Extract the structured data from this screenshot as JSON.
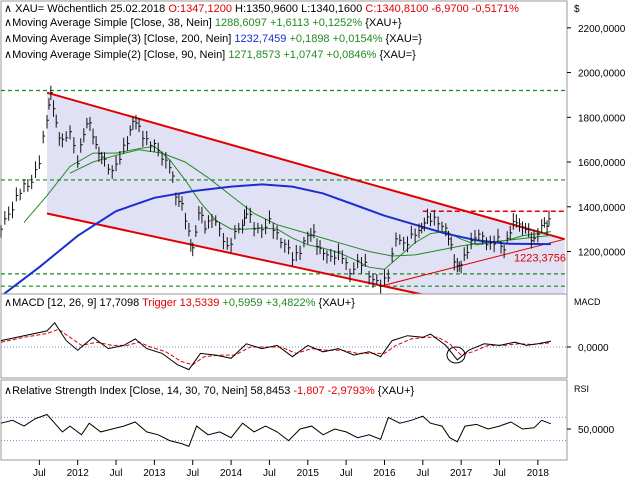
{
  "chart_data": [
    {
      "type": "line",
      "panel": "price",
      "instrument": "XAU",
      "interval": "Wöchentlich",
      "date": "25.02.2018",
      "ohlc": {
        "open_label": "O:1347,1200",
        "high_label": "H:1350,9600",
        "low_label": "L:1340,1600",
        "close_label": "C:1340,8100",
        "change_label": "-6,9700",
        "change_pct_label": "-0,5171%"
      },
      "legend": [
        {
          "prefix": "Moving Average Simple [Close, 38, Nein]",
          "value": "1288,6097",
          "change": "+1,6113",
          "pct": "+0,1252%",
          "suffix": "{XAU+}",
          "color": "#228b22"
        },
        {
          "prefix": "Moving Average Simple(3) [Close, 200, Nein]",
          "value": "1232,7459",
          "change": "+0,1898",
          "pct": "+0,0154%",
          "suffix": "{XAU=}",
          "color": "#1a2fd0"
        },
        {
          "prefix": "Moving Average Simple(2) [Close, 90, Nein]",
          "value": "1271,8573",
          "change": "+1,0747",
          "pct": "+0,0846%",
          "suffix": "{XAU=}",
          "color": "#228b22"
        }
      ],
      "currency_symbol": "$",
      "y_ticks": [
        1200,
        1400,
        1600,
        1800,
        2000,
        2200
      ],
      "y_tick_labels": [
        "1200,0000",
        "1400,0000",
        "1600,0000",
        "1800,0000",
        "2000,0000",
        "2200,0000"
      ],
      "ylim": [
        1010,
        2320
      ],
      "x_ticks": [
        "Jul",
        "2012",
        "Jul",
        "2013",
        "Jul",
        "2014",
        "Jul",
        "2015",
        "Jul",
        "2016",
        "Jul",
        "2017",
        "Jul",
        "2018"
      ],
      "x_tick_t": [
        2011.5,
        2012.0,
        2012.5,
        2013.0,
        2013.5,
        2014.0,
        2014.5,
        2015.0,
        2015.5,
        2016.0,
        2016.5,
        2017.0,
        2017.5,
        2018.0
      ],
      "xlim": [
        2011.0,
        2018.38
      ],
      "annotation_value": "1223,3756",
      "horizontal_levels": [
        1920,
        1520,
        1380,
        1100,
        1045
      ],
      "channel": {
        "upper": [
          [
            2011.6,
            1910
          ],
          [
            2018.35,
            1255
          ]
        ],
        "lower": [
          [
            2011.6,
            1370
          ],
          [
            2016.6,
            1000
          ]
        ],
        "support": [
          [
            2015.95,
            1045
          ],
          [
            2018.35,
            1255
          ]
        ]
      },
      "close": [
        [
          2011.0,
          1290
        ],
        [
          2011.1,
          1360
        ],
        [
          2011.2,
          1430
        ],
        [
          2011.3,
          1500
        ],
        [
          2011.4,
          1530
        ],
        [
          2011.5,
          1600
        ],
        [
          2011.6,
          1800
        ],
        [
          2011.65,
          1890
        ],
        [
          2011.72,
          1760
        ],
        [
          2011.8,
          1700
        ],
        [
          2011.9,
          1740
        ],
        [
          2012.0,
          1620
        ],
        [
          2012.08,
          1720
        ],
        [
          2012.16,
          1770
        ],
        [
          2012.24,
          1660
        ],
        [
          2012.35,
          1600
        ],
        [
          2012.45,
          1580
        ],
        [
          2012.55,
          1620
        ],
        [
          2012.65,
          1700
        ],
        [
          2012.72,
          1770
        ],
        [
          2012.8,
          1740
        ],
        [
          2012.9,
          1700
        ],
        [
          2013.0,
          1680
        ],
        [
          2013.1,
          1640
        ],
        [
          2013.2,
          1580
        ],
        [
          2013.28,
          1440
        ],
        [
          2013.36,
          1400
        ],
        [
          2013.45,
          1270
        ],
        [
          2013.5,
          1230
        ],
        [
          2013.58,
          1380
        ],
        [
          2013.66,
          1320
        ],
        [
          2013.75,
          1340
        ],
        [
          2013.85,
          1280
        ],
        [
          2013.95,
          1220
        ],
        [
          2014.05,
          1280
        ],
        [
          2014.15,
          1340
        ],
        [
          2014.2,
          1380
        ],
        [
          2014.3,
          1300
        ],
        [
          2014.4,
          1290
        ],
        [
          2014.5,
          1320
        ],
        [
          2014.6,
          1290
        ],
        [
          2014.7,
          1240
        ],
        [
          2014.8,
          1180
        ],
        [
          2014.9,
          1200
        ],
        [
          2015.0,
          1250
        ],
        [
          2015.08,
          1280
        ],
        [
          2015.16,
          1200
        ],
        [
          2015.25,
          1200
        ],
        [
          2015.35,
          1190
        ],
        [
          2015.45,
          1170
        ],
        [
          2015.55,
          1100
        ],
        [
          2015.65,
          1130
        ],
        [
          2015.75,
          1150
        ],
        [
          2015.85,
          1080
        ],
        [
          2015.95,
          1060
        ],
        [
          2016.05,
          1100
        ],
        [
          2016.15,
          1240
        ],
        [
          2016.25,
          1230
        ],
        [
          2016.35,
          1260
        ],
        [
          2016.45,
          1300
        ],
        [
          2016.52,
          1350
        ],
        [
          2016.6,
          1340
        ],
        [
          2016.7,
          1330
        ],
        [
          2016.8,
          1280
        ],
        [
          2016.87,
          1220
        ],
        [
          2016.95,
          1140
        ],
        [
          2017.0,
          1150
        ],
        [
          2017.08,
          1220
        ],
        [
          2017.18,
          1250
        ],
        [
          2017.28,
          1260
        ],
        [
          2017.38,
          1220
        ],
        [
          2017.48,
          1260
        ],
        [
          2017.56,
          1230
        ],
        [
          2017.64,
          1290
        ],
        [
          2017.72,
          1340
        ],
        [
          2017.8,
          1290
        ],
        [
          2017.88,
          1280
        ],
        [
          2017.95,
          1260
        ],
        [
          2018.05,
          1320
        ],
        [
          2018.12,
          1340
        ],
        [
          2018.17,
          1341
        ]
      ],
      "sma38": [
        [
          2011.3,
          1330
        ],
        [
          2011.6,
          1450
        ],
        [
          2011.9,
          1580
        ],
        [
          2012.2,
          1640
        ],
        [
          2012.5,
          1640
        ],
        [
          2012.8,
          1660
        ],
        [
          2013.0,
          1670
        ],
        [
          2013.2,
          1610
        ],
        [
          2013.4,
          1520
        ],
        [
          2013.6,
          1420
        ],
        [
          2013.8,
          1340
        ],
        [
          2014.0,
          1300
        ],
        [
          2014.2,
          1300
        ],
        [
          2014.4,
          1305
        ],
        [
          2014.6,
          1300
        ],
        [
          2014.8,
          1260
        ],
        [
          2015.0,
          1230
        ],
        [
          2015.2,
          1215
        ],
        [
          2015.4,
          1195
        ],
        [
          2015.6,
          1165
        ],
        [
          2015.8,
          1130
        ],
        [
          2016.0,
          1120
        ],
        [
          2016.2,
          1180
        ],
        [
          2016.4,
          1240
        ],
        [
          2016.6,
          1280
        ],
        [
          2016.8,
          1290
        ],
        [
          2017.0,
          1255
        ],
        [
          2017.2,
          1230
        ],
        [
          2017.4,
          1240
        ],
        [
          2017.6,
          1250
        ],
        [
          2017.8,
          1270
        ],
        [
          2018.0,
          1280
        ],
        [
          2018.17,
          1289
        ]
      ],
      "sma90": [
        [
          2011.9,
          1550
        ],
        [
          2012.2,
          1600
        ],
        [
          2012.5,
          1630
        ],
        [
          2012.8,
          1655
        ],
        [
          2013.1,
          1640
        ],
        [
          2013.4,
          1600
        ],
        [
          2013.7,
          1530
        ],
        [
          2014.0,
          1450
        ],
        [
          2014.3,
          1370
        ],
        [
          2014.6,
          1320
        ],
        [
          2014.9,
          1290
        ],
        [
          2015.2,
          1260
        ],
        [
          2015.5,
          1230
        ],
        [
          2015.8,
          1200
        ],
        [
          2016.1,
          1180
        ],
        [
          2016.4,
          1185
        ],
        [
          2016.7,
          1205
        ],
        [
          2017.0,
          1225
        ],
        [
          2017.3,
          1240
        ],
        [
          2017.6,
          1250
        ],
        [
          2017.9,
          1262
        ],
        [
          2018.17,
          1272
        ]
      ],
      "sma200": [
        [
          2011.0,
          1000
        ],
        [
          2011.5,
          1130
        ],
        [
          2012.0,
          1270
        ],
        [
          2012.5,
          1380
        ],
        [
          2013.0,
          1440
        ],
        [
          2013.5,
          1470
        ],
        [
          2014.0,
          1490
        ],
        [
          2014.4,
          1500
        ],
        [
          2014.8,
          1490
        ],
        [
          2015.2,
          1460
        ],
        [
          2015.6,
          1410
        ],
        [
          2016.0,
          1360
        ],
        [
          2016.4,
          1320
        ],
        [
          2016.8,
          1280
        ],
        [
          2017.2,
          1250
        ],
        [
          2017.6,
          1235
        ],
        [
          2018.17,
          1233
        ]
      ]
    },
    {
      "type": "line",
      "panel": "macd",
      "title": "MACD [12, 26, 9]",
      "value": "17,7098",
      "trigger_label": "Trigger",
      "trigger_value": "13,5339",
      "change": "+0,5959",
      "pct": "+3,4822%",
      "suffix": "{XAU+}",
      "axis_title": "MACD",
      "y_tick_labels": [
        "0,0000"
      ],
      "y_ticks": [
        0
      ],
      "ylim": [
        -90,
        90
      ],
      "macd": [
        [
          2011.0,
          20
        ],
        [
          2011.3,
          35
        ],
        [
          2011.6,
          50
        ],
        [
          2011.7,
          75
        ],
        [
          2011.85,
          20
        ],
        [
          2012.0,
          -10
        ],
        [
          2012.2,
          30
        ],
        [
          2012.4,
          -5
        ],
        [
          2012.6,
          5
        ],
        [
          2012.75,
          25
        ],
        [
          2012.9,
          -5
        ],
        [
          2013.1,
          -20
        ],
        [
          2013.3,
          -55
        ],
        [
          2013.45,
          -70
        ],
        [
          2013.6,
          -20
        ],
        [
          2013.8,
          -25
        ],
        [
          2014.0,
          -35
        ],
        [
          2014.2,
          10
        ],
        [
          2014.4,
          -5
        ],
        [
          2014.6,
          5
        ],
        [
          2014.8,
          -30
        ],
        [
          2015.0,
          5
        ],
        [
          2015.2,
          -15
        ],
        [
          2015.4,
          -5
        ],
        [
          2015.6,
          -25
        ],
        [
          2015.8,
          -15
        ],
        [
          2015.95,
          -30
        ],
        [
          2016.1,
          20
        ],
        [
          2016.3,
          35
        ],
        [
          2016.5,
          30
        ],
        [
          2016.6,
          40
        ],
        [
          2016.8,
          5
        ],
        [
          2016.95,
          -40
        ],
        [
          2017.1,
          -10
        ],
        [
          2017.3,
          10
        ],
        [
          2017.5,
          5
        ],
        [
          2017.7,
          15
        ],
        [
          2017.85,
          5
        ],
        [
          2018.0,
          10
        ],
        [
          2018.17,
          18
        ]
      ],
      "trigger": [
        [
          2011.0,
          15
        ],
        [
          2011.3,
          30
        ],
        [
          2011.6,
          42
        ],
        [
          2011.75,
          55
        ],
        [
          2011.9,
          30
        ],
        [
          2012.05,
          5
        ],
        [
          2012.25,
          15
        ],
        [
          2012.45,
          5
        ],
        [
          2012.65,
          5
        ],
        [
          2012.8,
          15
        ],
        [
          2012.95,
          0
        ],
        [
          2013.15,
          -15
        ],
        [
          2013.35,
          -45
        ],
        [
          2013.5,
          -55
        ],
        [
          2013.65,
          -30
        ],
        [
          2013.85,
          -25
        ],
        [
          2014.05,
          -25
        ],
        [
          2014.25,
          0
        ],
        [
          2014.45,
          0
        ],
        [
          2014.65,
          0
        ],
        [
          2014.85,
          -20
        ],
        [
          2015.05,
          -5
        ],
        [
          2015.25,
          -10
        ],
        [
          2015.45,
          -10
        ],
        [
          2015.65,
          -20
        ],
        [
          2015.85,
          -20
        ],
        [
          2016.0,
          -20
        ],
        [
          2016.15,
          5
        ],
        [
          2016.35,
          25
        ],
        [
          2016.55,
          30
        ],
        [
          2016.7,
          30
        ],
        [
          2016.85,
          10
        ],
        [
          2017.0,
          -25
        ],
        [
          2017.15,
          -15
        ],
        [
          2017.35,
          5
        ],
        [
          2017.55,
          5
        ],
        [
          2017.75,
          10
        ],
        [
          2017.9,
          8
        ],
        [
          2018.05,
          10
        ],
        [
          2018.17,
          13.5
        ]
      ]
    },
    {
      "type": "line",
      "panel": "rsi",
      "title": "Relative Strength Index [Close, 14, 30, 70, Nein]",
      "value": "58,8453",
      "change": "-1,807",
      "pct": "-2,9793%",
      "suffix": "{XAU+}",
      "axis_title": "RSI",
      "y_tick_labels": [
        "50,0000"
      ],
      "y_ticks": [
        50
      ],
      "guides": [
        70,
        30
      ],
      "ylim": [
        0,
        100
      ],
      "rsi": [
        [
          2011.0,
          60
        ],
        [
          2011.15,
          65
        ],
        [
          2011.3,
          55
        ],
        [
          2011.45,
          68
        ],
        [
          2011.6,
          75
        ],
        [
          2011.7,
          60
        ],
        [
          2011.8,
          45
        ],
        [
          2011.9,
          55
        ],
        [
          2012.05,
          40
        ],
        [
          2012.15,
          60
        ],
        [
          2012.3,
          45
        ],
        [
          2012.45,
          50
        ],
        [
          2012.6,
          55
        ],
        [
          2012.75,
          62
        ],
        [
          2012.9,
          45
        ],
        [
          2013.05,
          40
        ],
        [
          2013.2,
          30
        ],
        [
          2013.35,
          25
        ],
        [
          2013.45,
          20
        ],
        [
          2013.55,
          55
        ],
        [
          2013.7,
          40
        ],
        [
          2013.85,
          45
        ],
        [
          2014.0,
          35
        ],
        [
          2014.15,
          60
        ],
        [
          2014.3,
          45
        ],
        [
          2014.45,
          55
        ],
        [
          2014.6,
          45
        ],
        [
          2014.75,
          30
        ],
        [
          2014.9,
          50
        ],
        [
          2015.05,
          55
        ],
        [
          2015.2,
          40
        ],
        [
          2015.35,
          50
        ],
        [
          2015.5,
          45
        ],
        [
          2015.65,
          35
        ],
        [
          2015.8,
          40
        ],
        [
          2015.95,
          32
        ],
        [
          2016.05,
          70
        ],
        [
          2016.2,
          60
        ],
        [
          2016.35,
          65
        ],
        [
          2016.5,
          72
        ],
        [
          2016.6,
          60
        ],
        [
          2016.75,
          55
        ],
        [
          2016.85,
          35
        ],
        [
          2016.95,
          28
        ],
        [
          2017.05,
          55
        ],
        [
          2017.2,
          58
        ],
        [
          2017.35,
          50
        ],
        [
          2017.5,
          55
        ],
        [
          2017.65,
          62
        ],
        [
          2017.8,
          50
        ],
        [
          2017.95,
          52
        ],
        [
          2018.05,
          65
        ],
        [
          2018.17,
          59
        ]
      ]
    }
  ]
}
